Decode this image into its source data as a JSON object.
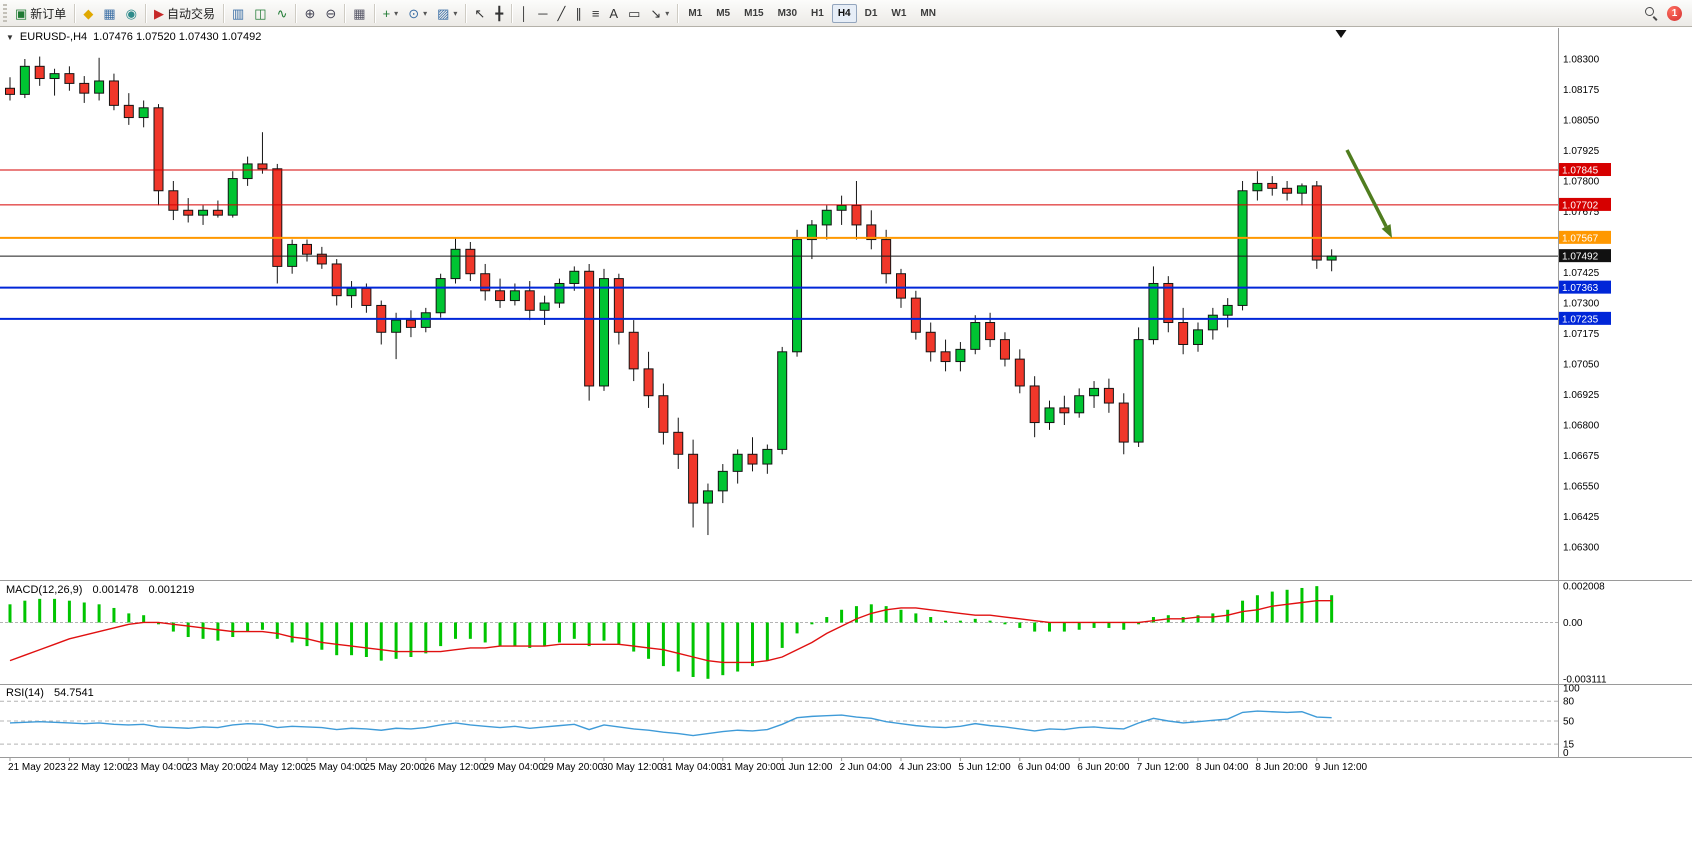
{
  "toolbar": {
    "caret_glyph": "▾",
    "groups": [
      {
        "items": [
          {
            "name": "new-order-button",
            "glyph": "▣",
            "glyph_color": "#1f7a33",
            "label": "新订单"
          }
        ]
      },
      {
        "items": [
          {
            "name": "market-watch-button",
            "glyph": "◆",
            "glyph_color": "#e0a800"
          },
          {
            "name": "navigator-button",
            "glyph": "▦",
            "glyph_color": "#3a6ea5"
          },
          {
            "name": "community-button",
            "glyph": "◉",
            "glyph_color": "#2e8b8b"
          }
        ]
      },
      {
        "items": [
          {
            "name": "auto-trading-button",
            "glyph": "▶",
            "glyph_color": "#c62828",
            "label": "自动交易"
          }
        ]
      },
      {
        "items": [
          {
            "name": "bar-chart-button",
            "glyph": "▥",
            "glyph_color": "#3a6ea5"
          },
          {
            "name": "candlestick-chart-button",
            "glyph": "◫",
            "glyph_color": "#1f7a33"
          },
          {
            "name": "line-chart-button",
            "glyph": "∿",
            "glyph_color": "#1f7a33"
          }
        ]
      },
      {
        "items": [
          {
            "name": "zoom-in-button",
            "glyph": "⊕",
            "glyph_color": "#445"
          },
          {
            "name": "zoom-out-button",
            "glyph": "⊖",
            "glyph_color": "#445"
          }
        ]
      },
      {
        "items": [
          {
            "name": "tile-windows-button",
            "glyph": "▦",
            "glyph_color": "#556"
          }
        ]
      },
      {
        "items": [
          {
            "name": "indicators-button",
            "glyph": "+",
            "glyph_color": "#1f7a33",
            "caret": true
          },
          {
            "name": "periods-button",
            "glyph": "⊙",
            "glyph_color": "#3a6ea5",
            "caret": true
          },
          {
            "name": "templates-button",
            "glyph": "▨",
            "glyph_color": "#3a6ea5",
            "caret": true
          }
        ]
      },
      {
        "items": [
          {
            "name": "cursor-button",
            "glyph": "↖",
            "glyph_color": "#333"
          },
          {
            "name": "crosshair-button",
            "glyph": "╋",
            "glyph_color": "#333"
          }
        ]
      },
      {
        "items": [
          {
            "name": "vertical-line-button",
            "glyph": "│",
            "glyph_color": "#333"
          },
          {
            "name": "horizontal-line-button",
            "glyph": "─",
            "glyph_color": "#333"
          },
          {
            "name": "trendline-button",
            "glyph": "╱",
            "glyph_color": "#333"
          },
          {
            "name": "channel-button",
            "glyph": "∥",
            "glyph_color": "#333"
          },
          {
            "name": "fibonacci-button",
            "glyph": "≡",
            "glyph_color": "#333"
          },
          {
            "name": "text-button",
            "glyph": "A",
            "glyph_color": "#333"
          },
          {
            "name": "label-button",
            "glyph": "▭",
            "glyph_color": "#333"
          },
          {
            "name": "arrows-button",
            "glyph": "↘",
            "glyph_color": "#333",
            "caret": true
          }
        ]
      }
    ],
    "timeframes": [
      {
        "label": "M1"
      },
      {
        "label": "M5"
      },
      {
        "label": "M15"
      },
      {
        "label": "M30"
      },
      {
        "label": "H1"
      },
      {
        "label": "H4",
        "active": true
      },
      {
        "label": "D1"
      },
      {
        "label": "W1"
      },
      {
        "label": "MN"
      }
    ],
    "notification_count": "1"
  },
  "chart": {
    "collapse_icon": "▼",
    "symbol": "EURUSD-,H4",
    "ohlc": "1.07476 1.07520 1.07430 1.07492"
  },
  "indicators": {
    "macd": {
      "label": "MACD(12,26,9)",
      "value_main": "0.001478",
      "value_signal": "0.001219",
      "axis_labels": [
        "0.002008",
        "0.00",
        "-0.003111"
      ]
    },
    "rsi": {
      "label": "RSI(14)",
      "value": "54.7541",
      "axis_labels": [
        "100",
        "80",
        "50",
        "15",
        "0"
      ]
    }
  },
  "chart_data": {
    "type": "candlestick",
    "symbol": "EURUSD-",
    "timeframe": "H4",
    "price_axis": {
      "max": 1.083,
      "min": 1.063,
      "ticks": [
        "1.08300",
        "1.08175",
        "1.08050",
        "1.07925",
        "1.07800",
        "1.07675",
        "1.07550",
        "1.07425",
        "1.07300",
        "1.07175",
        "1.07050",
        "1.06925",
        "1.06800",
        "1.06675",
        "1.06550",
        "1.06425",
        "1.06300"
      ]
    },
    "hlines": [
      {
        "price": 1.07845,
        "label": "1.07845",
        "color": "#d60000",
        "badge": "#d60000",
        "width": 1
      },
      {
        "price": 1.07702,
        "label": "1.07702",
        "color": "#d60000",
        "badge": "#d60000",
        "width": 1
      },
      {
        "price": 1.07567,
        "label": "1.07567",
        "color": "#ff9800",
        "badge": "#ff9800",
        "width": 2
      },
      {
        "price": 1.07492,
        "label": "1.07492",
        "color": "#1a1a1a",
        "badge": "#111111",
        "width": 1
      },
      {
        "price": 1.07363,
        "label": "1.07363",
        "color": "#0026d8",
        "badge": "#0026d8",
        "width": 2
      },
      {
        "price": 1.07235,
        "label": "1.07235",
        "color": "#0026d8",
        "badge": "#0026d8",
        "width": 2
      }
    ],
    "candles": [
      [
        1.0818,
        1.08225,
        1.0813,
        1.08155
      ],
      [
        1.08155,
        1.083,
        1.0814,
        1.0827
      ],
      [
        1.0827,
        1.0831,
        1.0819,
        1.0822
      ],
      [
        1.0822,
        1.0826,
        1.0815,
        1.0824
      ],
      [
        1.0824,
        1.0827,
        1.0817,
        1.082
      ],
      [
        1.082,
        1.0823,
        1.0812,
        1.0816
      ],
      [
        1.0816,
        1.08305,
        1.0813,
        1.0821
      ],
      [
        1.0821,
        1.0824,
        1.0809,
        1.0811
      ],
      [
        1.0811,
        1.0816,
        1.0803,
        1.0806
      ],
      [
        1.0806,
        1.0813,
        1.0802,
        1.081
      ],
      [
        1.081,
        1.08115,
        1.077,
        1.0776
      ],
      [
        1.0776,
        1.078,
        1.0764,
        1.0768
      ],
      [
        1.0768,
        1.0773,
        1.0763,
        1.0766
      ],
      [
        1.0766,
        1.077,
        1.0762,
        1.0768
      ],
      [
        1.0768,
        1.0772,
        1.0765,
        1.0766
      ],
      [
        1.0766,
        1.0784,
        1.0765,
        1.0781
      ],
      [
        1.0781,
        1.079,
        1.0778,
        1.0787
      ],
      [
        1.0787,
        1.08,
        1.0783,
        1.0785
      ],
      [
        1.0785,
        1.0787,
        1.0738,
        1.0745
      ],
      [
        1.0745,
        1.0756,
        1.0742,
        1.0754
      ],
      [
        1.0754,
        1.0756,
        1.0747,
        1.075
      ],
      [
        1.075,
        1.0753,
        1.0744,
        1.0746
      ],
      [
        1.0746,
        1.0748,
        1.0729,
        1.0733
      ],
      [
        1.0733,
        1.0739,
        1.0728,
        1.0736
      ],
      [
        1.0736,
        1.0738,
        1.0726,
        1.0729
      ],
      [
        1.0729,
        1.0731,
        1.0713,
        1.0718
      ],
      [
        1.0718,
        1.0726,
        1.0707,
        1.0723
      ],
      [
        1.0723,
        1.0727,
        1.0716,
        1.072
      ],
      [
        1.072,
        1.0728,
        1.0718,
        1.0726
      ],
      [
        1.0726,
        1.0742,
        1.0724,
        1.074
      ],
      [
        1.074,
        1.0757,
        1.0738,
        1.0752
      ],
      [
        1.0752,
        1.0755,
        1.0739,
        1.0742
      ],
      [
        1.0742,
        1.0746,
        1.0731,
        1.0735
      ],
      [
        1.0735,
        1.074,
        1.0728,
        1.0731
      ],
      [
        1.0731,
        1.0738,
        1.0729,
        1.0735
      ],
      [
        1.0735,
        1.0739,
        1.0723,
        1.0727
      ],
      [
        1.0727,
        1.0733,
        1.0721,
        1.073
      ],
      [
        1.073,
        1.074,
        1.0728,
        1.0738
      ],
      [
        1.0738,
        1.0745,
        1.0735,
        1.0743
      ],
      [
        1.0743,
        1.0746,
        1.069,
        1.0696
      ],
      [
        1.0696,
        1.0744,
        1.0694,
        1.074
      ],
      [
        1.074,
        1.0742,
        1.0713,
        1.0718
      ],
      [
        1.0718,
        1.0723,
        1.0698,
        1.0703
      ],
      [
        1.0703,
        1.071,
        1.0687,
        1.0692
      ],
      [
        1.0692,
        1.0697,
        1.0672,
        1.0677
      ],
      [
        1.0677,
        1.0683,
        1.0662,
        1.0668
      ],
      [
        1.0668,
        1.0674,
        1.0638,
        1.0648
      ],
      [
        1.0648,
        1.0656,
        1.06349,
        1.0653
      ],
      [
        1.0653,
        1.0664,
        1.0648,
        1.0661
      ],
      [
        1.0661,
        1.067,
        1.0656,
        1.0668
      ],
      [
        1.0668,
        1.0675,
        1.0661,
        1.0664
      ],
      [
        1.0664,
        1.0672,
        1.066,
        1.067
      ],
      [
        1.067,
        1.0712,
        1.0668,
        1.071
      ],
      [
        1.071,
        1.076,
        1.0708,
        1.0756
      ],
      [
        1.0756,
        1.0764,
        1.0748,
        1.0762
      ],
      [
        1.0762,
        1.077,
        1.0756,
        1.0768
      ],
      [
        1.0768,
        1.0774,
        1.0762,
        1.077
      ],
      [
        1.077,
        1.078,
        1.0756,
        1.0762
      ],
      [
        1.0762,
        1.0768,
        1.0752,
        1.0756
      ],
      [
        1.0756,
        1.076,
        1.0738,
        1.0742
      ],
      [
        1.0742,
        1.0744,
        1.0728,
        1.0732
      ],
      [
        1.0732,
        1.0735,
        1.0715,
        1.0718
      ],
      [
        1.0718,
        1.0722,
        1.0706,
        1.071
      ],
      [
        1.071,
        1.0715,
        1.0702,
        1.0706
      ],
      [
        1.0706,
        1.0714,
        1.0702,
        1.0711
      ],
      [
        1.0711,
        1.0725,
        1.0709,
        1.0722
      ],
      [
        1.0722,
        1.0726,
        1.0712,
        1.0715
      ],
      [
        1.0715,
        1.0718,
        1.0704,
        1.0707
      ],
      [
        1.0707,
        1.0711,
        1.0693,
        1.0696
      ],
      [
        1.0696,
        1.07,
        1.0675,
        1.0681
      ],
      [
        1.0681,
        1.069,
        1.0678,
        1.0687
      ],
      [
        1.0687,
        1.0692,
        1.068,
        1.0685
      ],
      [
        1.0685,
        1.0695,
        1.0683,
        1.0692
      ],
      [
        1.0692,
        1.0698,
        1.0687,
        1.0695
      ],
      [
        1.0695,
        1.0699,
        1.0685,
        1.0689
      ],
      [
        1.0689,
        1.0693,
        1.0668,
        1.0673
      ],
      [
        1.0673,
        1.072,
        1.0671,
        1.0715
      ],
      [
        1.0715,
        1.0745,
        1.0713,
        1.0738
      ],
      [
        1.0738,
        1.0741,
        1.0718,
        1.0722
      ],
      [
        1.0722,
        1.0728,
        1.0709,
        1.0713
      ],
      [
        1.0713,
        1.0722,
        1.071,
        1.0719
      ],
      [
        1.0719,
        1.0728,
        1.0715,
        1.0725
      ],
      [
        1.0725,
        1.0732,
        1.072,
        1.0729
      ],
      [
        1.0729,
        1.078,
        1.0727,
        1.0776
      ],
      [
        1.0776,
        1.0784,
        1.0772,
        1.0779
      ],
      [
        1.0779,
        1.0782,
        1.0774,
        1.0777
      ],
      [
        1.0777,
        1.078,
        1.0772,
        1.0775
      ],
      [
        1.0775,
        1.0779,
        1.077,
        1.0778
      ],
      [
        1.0778,
        1.078,
        1.0744,
        1.07476
      ],
      [
        1.07476,
        1.0752,
        1.0743,
        1.07492
      ]
    ],
    "macd": {
      "range": {
        "max": 0.002008,
        "min": -0.003111
      },
      "histogram": [
        0.001,
        0.0012,
        0.0013,
        0.0013,
        0.0012,
        0.0011,
        0.001,
        0.0008,
        0.0005,
        0.0004,
        -0.0001,
        -0.0005,
        -0.0008,
        -0.0009,
        -0.001,
        -0.0008,
        -0.0005,
        -0.0004,
        -0.0009,
        -0.0011,
        -0.0013,
        -0.0015,
        -0.0018,
        -0.0018,
        -0.0019,
        -0.0021,
        -0.002,
        -0.0019,
        -0.0017,
        -0.0013,
        -0.0009,
        -0.0009,
        -0.0011,
        -0.0013,
        -0.0013,
        -0.0014,
        -0.0013,
        -0.0011,
        -0.0009,
        -0.0013,
        -0.001,
        -0.0012,
        -0.0016,
        -0.002,
        -0.0024,
        -0.0027,
        -0.003,
        -0.0031,
        -0.0029,
        -0.0027,
        -0.0024,
        -0.0021,
        -0.0014,
        -0.0006,
        -0.0001,
        0.0003,
        0.0007,
        0.0009,
        0.001,
        0.0009,
        0.0007,
        0.0005,
        0.0003,
        0.0001,
        0.0001,
        0.0002,
        0.0001,
        -0.0001,
        -0.0003,
        -0.0005,
        -0.0005,
        -0.0005,
        -0.0004,
        -0.0003,
        -0.0003,
        -0.0004,
        -0.0001,
        0.0003,
        0.0004,
        0.0003,
        0.0004,
        0.0005,
        0.0007,
        0.0012,
        0.0015,
        0.0017,
        0.0018,
        0.0019,
        0.002,
        0.0015
      ],
      "signal": [
        -0.0021,
        -0.0018,
        -0.0015,
        -0.0012,
        -0.0009,
        -0.0007,
        -0.0005,
        -0.0003,
        -0.0001,
        0,
        0,
        -0.0001,
        -0.0002,
        -0.0003,
        -0.0004,
        -0.0005,
        -0.0005,
        -0.0005,
        -0.0006,
        -0.0008,
        -0.0009,
        -0.0011,
        -0.0012,
        -0.0013,
        -0.0014,
        -0.0015,
        -0.0016,
        -0.0016,
        -0.0016,
        -0.0016,
        -0.0015,
        -0.0014,
        -0.0014,
        -0.0013,
        -0.0013,
        -0.0013,
        -0.0013,
        -0.0012,
        -0.0012,
        -0.0012,
        -0.0012,
        -0.0012,
        -0.0013,
        -0.0014,
        -0.0015,
        -0.0017,
        -0.0019,
        -0.0021,
        -0.0022,
        -0.0022,
        -0.0022,
        -0.0021,
        -0.0019,
        -0.0015,
        -0.0011,
        -0.0006,
        -0.0002,
        0.0002,
        0.0005,
        0.0007,
        0.0008,
        0.0008,
        0.0007,
        0.0006,
        0.0005,
        0.0004,
        0.0004,
        0.0003,
        0.0002,
        0.0001,
        0,
        0,
        0,
        0,
        0,
        0,
        0,
        0.0001,
        0.0002,
        0.0002,
        0.0003,
        0.0003,
        0.0004,
        0.0006,
        0.0007,
        0.0009,
        0.001,
        0.0011,
        0.0012,
        0.0012
      ]
    },
    "rsi": {
      "range": [
        0,
        100
      ],
      "levels": [
        80,
        50,
        15
      ],
      "values": [
        47,
        48,
        49,
        48,
        47,
        46,
        47,
        45,
        44,
        45,
        41,
        40,
        39,
        41,
        40,
        44,
        46,
        45,
        40,
        42,
        41,
        40,
        37,
        39,
        38,
        36,
        39,
        38,
        40,
        44,
        47,
        44,
        42,
        40,
        42,
        39,
        41,
        43,
        45,
        37,
        44,
        41,
        38,
        36,
        33,
        31,
        28,
        31,
        34,
        36,
        35,
        37,
        45,
        55,
        57,
        58,
        59,
        56,
        54,
        49,
        46,
        43,
        41,
        40,
        42,
        46,
        43,
        41,
        38,
        35,
        38,
        37,
        40,
        41,
        39,
        38,
        47,
        54,
        50,
        47,
        49,
        51,
        53,
        63,
        65,
        64,
        63,
        64,
        56,
        55
      ]
    },
    "time_labels": [
      {
        "t": "21 May 2023",
        "i": 0
      },
      {
        "t": "22 May 12:00",
        "i": 4
      },
      {
        "t": "23 May 04:00",
        "i": 8
      },
      {
        "t": "23 May 20:00",
        "i": 12
      },
      {
        "t": "24 May 12:00",
        "i": 16
      },
      {
        "t": "25 May 04:00",
        "i": 20
      },
      {
        "t": "25 May 20:00",
        "i": 24
      },
      {
        "t": "26 May 12:00",
        "i": 28
      },
      {
        "t": "29 May 04:00",
        "i": 32
      },
      {
        "t": "29 May 20:00",
        "i": 36
      },
      {
        "t": "30 May 12:00",
        "i": 40
      },
      {
        "t": "31 May 04:00",
        "i": 44
      },
      {
        "t": "31 May 20:00",
        "i": 48
      },
      {
        "t": "1 Jun 12:00",
        "i": 52
      },
      {
        "t": "2 Jun 04:00",
        "i": 56
      },
      {
        "t": "4 Jun 23:00",
        "i": 60
      },
      {
        "t": "5 Jun 12:00",
        "i": 64
      },
      {
        "t": "6 Jun 04:00",
        "i": 68
      },
      {
        "t": "6 Jun 20:00",
        "i": 72
      },
      {
        "t": "7 Jun 12:00",
        "i": 76
      },
      {
        "t": "8 Jun 04:00",
        "i": 80
      },
      {
        "t": "8 Jun 20:00",
        "i": 84
      },
      {
        "t": "9 Jun 12:00",
        "i": 88
      }
    ],
    "colors": {
      "up": "#00c432",
      "down": "#f0372a",
      "wick": "#141414",
      "macd_hist": "#00c400",
      "macd_signal": "#e01010",
      "rsi_line": "#3f9bd8",
      "level_dash": "#b4b4b4",
      "separator": "#9a9a9a",
      "axis_text": "#000000"
    },
    "annotations": {
      "trend_arrow": {
        "from": [
          1347,
          150
        ],
        "to": [
          1392,
          238
        ],
        "color": "#4f7d1f"
      },
      "shift_marker": [
        1341,
        30
      ]
    }
  }
}
